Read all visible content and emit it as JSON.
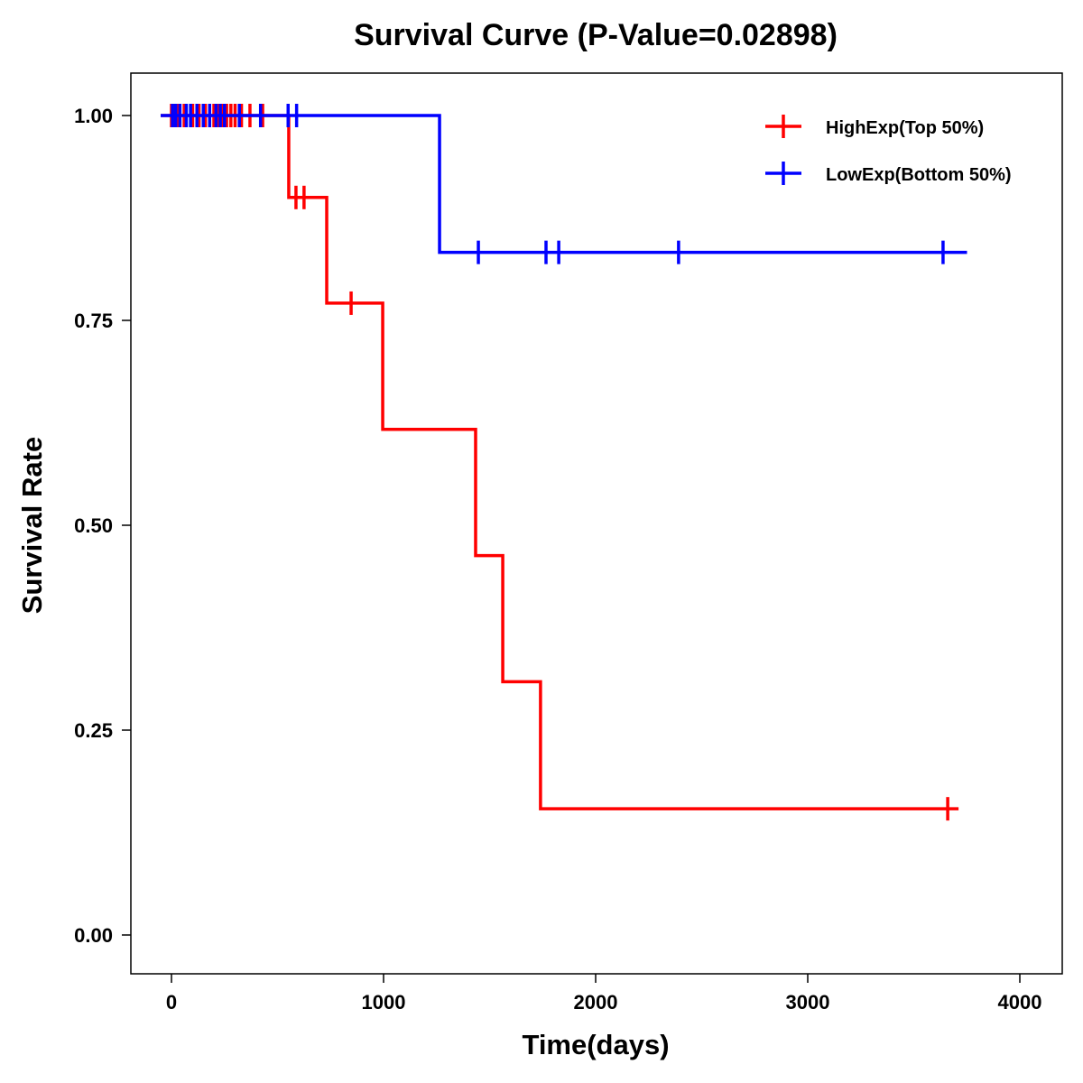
{
  "chart_data": {
    "type": "line",
    "title": "Survival Curve (P-Value=0.02898)",
    "xlabel": "Time(days)",
    "ylabel": "Survival Rate",
    "xlim": [
      -200,
      4200
    ],
    "ylim": [
      -0.05,
      1.05
    ],
    "xticks": [
      0,
      1000,
      2000,
      3000,
      4000
    ],
    "xtick_labels": [
      "0",
      "1000",
      "2000",
      "3000",
      "4000"
    ],
    "yticks": [
      0,
      0.25,
      0.5,
      0.75,
      1.0
    ],
    "ytick_labels": [
      "0.00",
      "0.25",
      "0.50",
      "0.75",
      "1.00"
    ],
    "grid": false,
    "legend_position": "top-right",
    "series": [
      {
        "name": "HighExp(Top 50%)",
        "color": "#ff0000",
        "steps": [
          [
            0,
            1.0
          ],
          [
            553,
            0.9
          ],
          [
            732,
            0.771
          ],
          [
            996,
            0.617
          ],
          [
            1434,
            0.463
          ],
          [
            1562,
            0.309
          ],
          [
            1740,
            0.154
          ]
        ],
        "end": 3660,
        "censors": [
          [
            0,
            1
          ],
          [
            10,
            1
          ],
          [
            30,
            1
          ],
          [
            60,
            1
          ],
          [
            100,
            1
          ],
          [
            130,
            1
          ],
          [
            160,
            1
          ],
          [
            200,
            1
          ],
          [
            220,
            1
          ],
          [
            240,
            1
          ],
          [
            260,
            1
          ],
          [
            280,
            1
          ],
          [
            300,
            1
          ],
          [
            330,
            1
          ],
          [
            370,
            1
          ],
          [
            430,
            1
          ],
          [
            587,
            0.9
          ],
          [
            625,
            0.9
          ],
          [
            847,
            0.771
          ],
          [
            3660,
            0.154
          ]
        ]
      },
      {
        "name": "LowExp(Bottom 50%)",
        "color": "#0000ff",
        "steps": [
          [
            0,
            1.0
          ],
          [
            1264,
            0.833
          ]
        ],
        "end": 3700,
        "censors": [
          [
            5,
            1
          ],
          [
            20,
            1
          ],
          [
            40,
            1
          ],
          [
            70,
            1
          ],
          [
            90,
            1
          ],
          [
            120,
            1
          ],
          [
            150,
            1
          ],
          [
            180,
            1
          ],
          [
            210,
            1
          ],
          [
            230,
            1
          ],
          [
            250,
            1
          ],
          [
            320,
            1
          ],
          [
            420,
            1
          ],
          [
            550,
            1
          ],
          [
            590,
            1
          ],
          [
            1447,
            0.833
          ],
          [
            1766,
            0.833
          ],
          [
            1826,
            0.833
          ],
          [
            2391,
            0.833
          ],
          [
            3638,
            0.833
          ]
        ]
      }
    ]
  }
}
